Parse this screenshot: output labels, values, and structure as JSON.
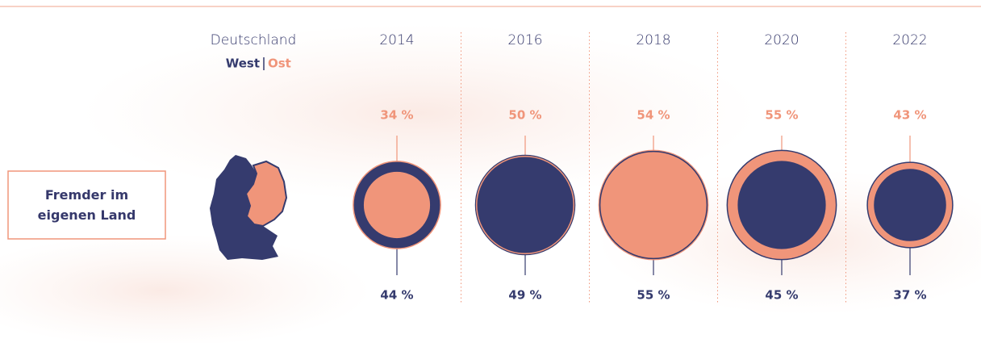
{
  "chart_data": {
    "type": "nested-circles",
    "title": "Deutschland",
    "row_label": "Fremder im eigenen Land",
    "categories": [
      "2014",
      "2016",
      "2018",
      "2020",
      "2022"
    ],
    "series": [
      {
        "name": "West",
        "color": "#353b6e",
        "values": [
          44,
          49,
          55,
          45,
          37
        ],
        "value_labels": [
          "44 %",
          "49 %",
          "55 %",
          "45 %",
          "37 %"
        ]
      },
      {
        "name": "Ost",
        "color": "#f0957a",
        "values": [
          34,
          50,
          54,
          55,
          43
        ],
        "value_labels": [
          "34 %",
          "50 %",
          "54 %",
          "55 %",
          "43 %"
        ]
      }
    ]
  }
}
